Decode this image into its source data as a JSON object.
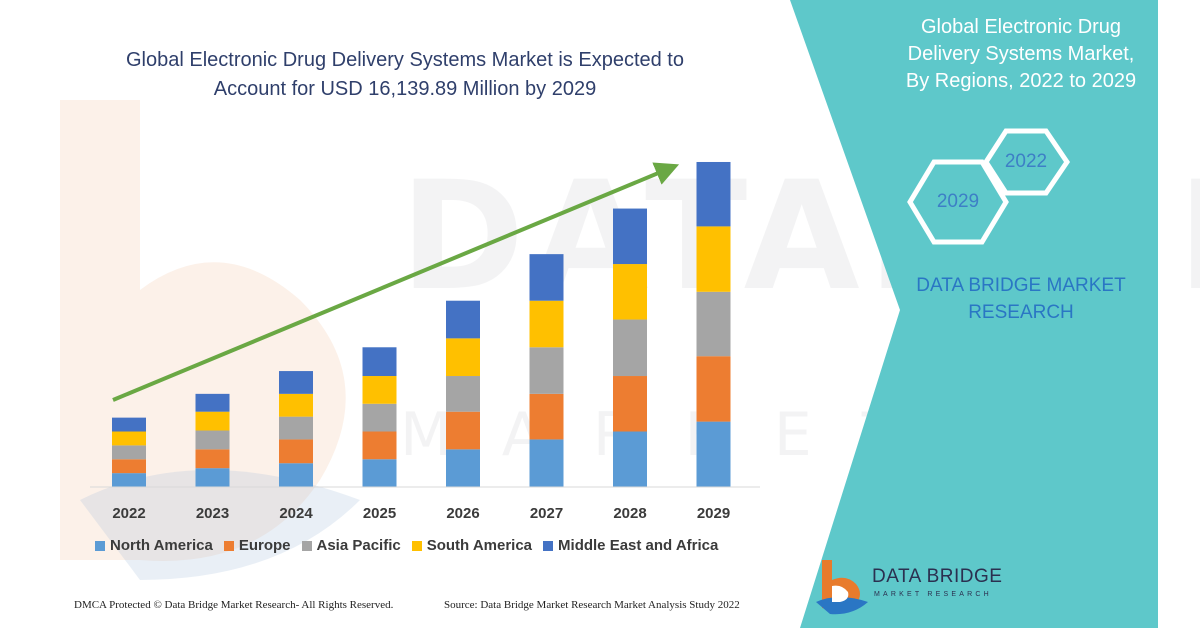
{
  "header": {
    "title_line1": "Global Electronic Drug Delivery Systems Market is Expected to",
    "title_line2": "Account for USD 16,139.89 Million by 2029"
  },
  "panel": {
    "title_line1": "Global Electronic Drug",
    "title_line2": "Delivery Systems Market,",
    "title_line3": "By Regions, 2022 to 2029",
    "hex_top": "2022",
    "hex_bottom": "2029",
    "brand_line1": "DATA BRIDGE MARKET",
    "brand_line2": "RESEARCH"
  },
  "watermark": {
    "main": "DATABRIDGE",
    "sub": "MARKET RESEARCH"
  },
  "footer": {
    "left": "DMCA Protected © Data Bridge Market Research- All Rights Reserved.",
    "right": "Source: Data Bridge Market Research Market Analysis Study 2022"
  },
  "logo": {
    "name": "DATA BRIDGE",
    "sub": "MARKET RESEARCH"
  },
  "colors": {
    "teal": "#5ec8ca",
    "title": "#2f3f6b",
    "arrow": "#6aa844",
    "brand_blue": "#2a76c4",
    "logo_orange": "#e87b2c"
  },
  "chart_data": {
    "type": "bar",
    "stacked": true,
    "title": "Global Electronic Drug Delivery Systems Market is Expected to Account for USD 16,139.89 Million by 2029",
    "categories": [
      "2022",
      "2023",
      "2024",
      "2025",
      "2026",
      "2027",
      "2028",
      "2029"
    ],
    "series": [
      {
        "name": "North America",
        "color": "#5b9bd5",
        "values": [
          14,
          19,
          24,
          28,
          38,
          48,
          56,
          66
        ]
      },
      {
        "name": "Europe",
        "color": "#ed7d31",
        "values": [
          14,
          19,
          24,
          28,
          38,
          46,
          56,
          66
        ]
      },
      {
        "name": "Asia Pacific",
        "color": "#a5a5a5",
        "values": [
          14,
          19,
          23,
          28,
          36,
          47,
          57,
          65
        ]
      },
      {
        "name": "South America",
        "color": "#ffc000",
        "values": [
          14,
          19,
          23,
          28,
          38,
          47,
          56,
          66
        ]
      },
      {
        "name": "Middle East and Africa",
        "color": "#4472c4",
        "values": [
          14,
          18,
          23,
          29,
          38,
          47,
          56,
          65
        ]
      }
    ],
    "ylim": [
      0,
      330
    ],
    "y_axis_visible": false,
    "trend_arrow": true,
    "legend_position": "bottom",
    "grid": false
  }
}
